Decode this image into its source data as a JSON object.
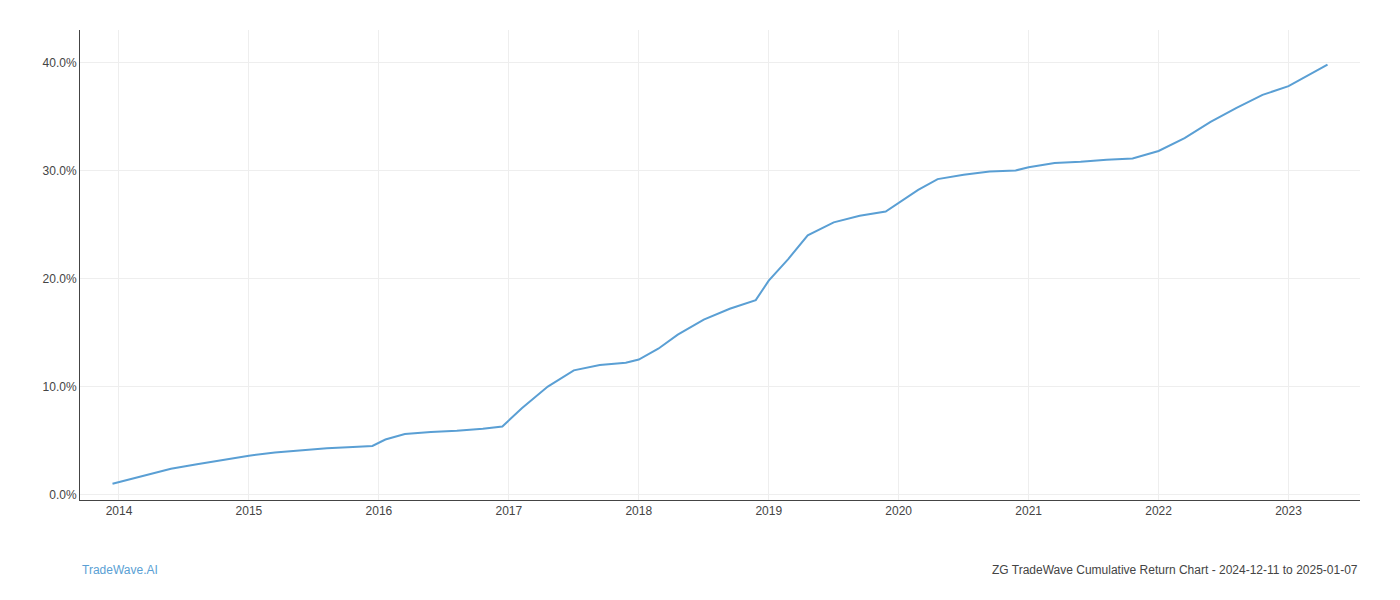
{
  "chart_data": {
    "type": "line",
    "annotations": [
      "TradeWave.AI",
      "ZG TradeWave Cumulative Return Chart - 2024-12-11 to 2025-01-07"
    ],
    "x": [
      2013.95,
      2014.05,
      2014.2,
      2014.4,
      2014.6,
      2014.8,
      2015.0,
      2015.2,
      2015.4,
      2015.6,
      2015.8,
      2015.95,
      2016.05,
      2016.2,
      2016.4,
      2016.6,
      2016.8,
      2016.95,
      2017.1,
      2017.3,
      2017.5,
      2017.7,
      2017.9,
      2018.0,
      2018.15,
      2018.3,
      2018.5,
      2018.7,
      2018.9,
      2019.0,
      2019.15,
      2019.3,
      2019.5,
      2019.7,
      2019.9,
      2020.0,
      2020.15,
      2020.3,
      2020.5,
      2020.7,
      2020.9,
      2021.0,
      2021.2,
      2021.4,
      2021.6,
      2021.8,
      2022.0,
      2022.2,
      2022.4,
      2022.6,
      2022.8,
      2023.0,
      2023.3
    ],
    "values": [
      0.01,
      0.013,
      0.018,
      0.024,
      0.028,
      0.032,
      0.036,
      0.039,
      0.041,
      0.043,
      0.044,
      0.045,
      0.051,
      0.056,
      0.058,
      0.059,
      0.061,
      0.063,
      0.08,
      0.1,
      0.115,
      0.12,
      0.122,
      0.125,
      0.135,
      0.148,
      0.162,
      0.172,
      0.18,
      0.198,
      0.218,
      0.24,
      0.252,
      0.258,
      0.262,
      0.27,
      0.282,
      0.292,
      0.296,
      0.299,
      0.3,
      0.303,
      0.307,
      0.308,
      0.31,
      0.311,
      0.318,
      0.33,
      0.345,
      0.358,
      0.37,
      0.378,
      0.398
    ],
    "color": "#5a9fd4",
    "xlim": [
      2013.7,
      2023.55
    ],
    "xticks": [
      2014,
      2015,
      2016,
      2017,
      2018,
      2019,
      2020,
      2021,
      2022,
      2023
    ],
    "ylim": [
      -0.005,
      0.43
    ],
    "yticks": [
      {
        "value": 0.0,
        "label": "0.0%"
      },
      {
        "value": 0.1,
        "label": "10.0%"
      },
      {
        "value": 0.2,
        "label": "20.0%"
      },
      {
        "value": 0.3,
        "label": "30.0%"
      },
      {
        "value": 0.4,
        "label": "40.0%"
      }
    ],
    "grid": true
  }
}
